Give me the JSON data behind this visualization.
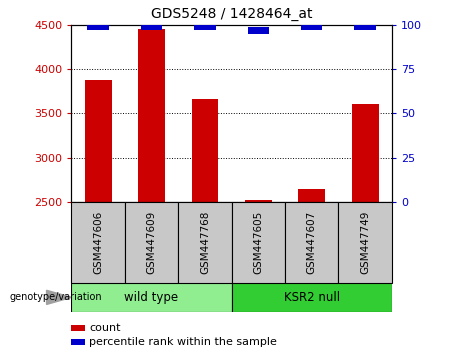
{
  "title": "GDS5248 / 1428464_at",
  "samples": [
    "GSM447606",
    "GSM447609",
    "GSM447768",
    "GSM447605",
    "GSM447607",
    "GSM447749"
  ],
  "counts": [
    3880,
    4450,
    3660,
    2520,
    2650,
    3610
  ],
  "percentiles": [
    99,
    99,
    99,
    97,
    99,
    99
  ],
  "ylim_left": [
    2500,
    4500
  ],
  "ylim_right": [
    0,
    100
  ],
  "yticks_left": [
    2500,
    3000,
    3500,
    4000,
    4500
  ],
  "yticks_right": [
    0,
    25,
    50,
    75,
    100
  ],
  "bar_color_red": "#cc0000",
  "bar_color_blue": "#0000cc",
  "group1_label": "wild type",
  "group2_label": "KSR2 null",
  "group1_indices": [
    0,
    1,
    2
  ],
  "group2_indices": [
    3,
    4,
    5
  ],
  "group1_color": "#90ee90",
  "group2_color": "#32cd32",
  "sample_box_color": "#c8c8c8",
  "legend_count": "count",
  "legend_percentile": "percentile rank within the sample",
  "genotype_label": "genotype/variation",
  "background_color": "#ffffff"
}
